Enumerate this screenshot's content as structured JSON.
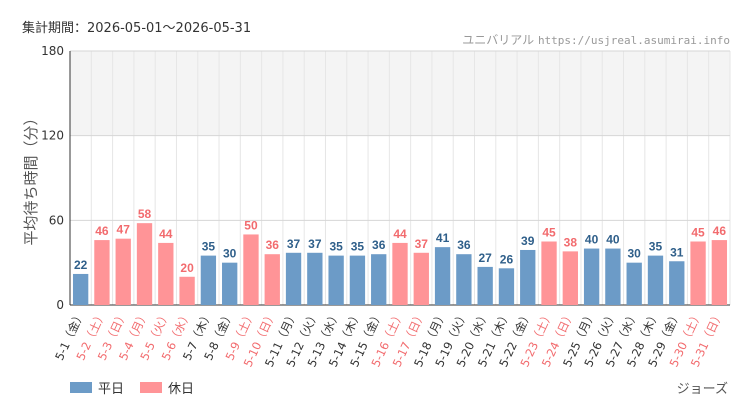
{
  "header": {
    "period_label": "集計期間：2026-05-01～2026-05-31",
    "site_name": "ユニバリアル",
    "site_url": "https://usjreal.asumirai.info"
  },
  "attraction": "ジョーズ",
  "colors": {
    "weekday": "#6c9bc7",
    "holiday": "#ff9497",
    "weekday_text": "#2f5f8a",
    "holiday_text": "#f26b6e",
    "grid": "#e6e6e6",
    "band": "#f4f4f4",
    "axis": "#333333"
  },
  "chart_data": {
    "type": "bar",
    "title": "",
    "xlabel": "",
    "ylabel": "平均待ち時間（分）",
    "ylim": [
      0,
      180
    ],
    "yticks": [
      0,
      60,
      120,
      180
    ],
    "shaded_band": [
      120,
      180
    ],
    "categories": [
      "5-1（金）",
      "5-2（土）",
      "5-3（日）",
      "5-4（月）",
      "5-5（火）",
      "5-6（水）",
      "5-7（木）",
      "5-8（金）",
      "5-9（土）",
      "5-10（日）",
      "5-11（月）",
      "5-12（火）",
      "5-13（水）",
      "5-14（木）",
      "5-15（金）",
      "5-16（土）",
      "5-17（日）",
      "5-18（月）",
      "5-19（火）",
      "5-20（水）",
      "5-21（木）",
      "5-22（金）",
      "5-23（土）",
      "5-24（日）",
      "5-25（月）",
      "5-26（火）",
      "5-27（水）",
      "5-28（木）",
      "5-29（金）",
      "5-30（土）",
      "5-31（日）"
    ],
    "values": [
      22,
      46,
      47,
      58,
      44,
      20,
      35,
      30,
      50,
      36,
      37,
      37,
      35,
      35,
      36,
      44,
      37,
      41,
      36,
      27,
      26,
      39,
      45,
      38,
      40,
      40,
      30,
      35,
      31,
      45,
      46
    ],
    "day_type": [
      "weekday",
      "holiday",
      "holiday",
      "holiday",
      "holiday",
      "holiday",
      "weekday",
      "weekday",
      "holiday",
      "holiday",
      "weekday",
      "weekday",
      "weekday",
      "weekday",
      "weekday",
      "holiday",
      "holiday",
      "weekday",
      "weekday",
      "weekday",
      "weekday",
      "weekday",
      "holiday",
      "holiday",
      "weekday",
      "weekday",
      "weekday",
      "weekday",
      "weekday",
      "holiday",
      "holiday"
    ],
    "legend": [
      {
        "key": "weekday",
        "label": "平日"
      },
      {
        "key": "holiday",
        "label": "休日"
      }
    ],
    "legend_position": "bottom-left"
  }
}
